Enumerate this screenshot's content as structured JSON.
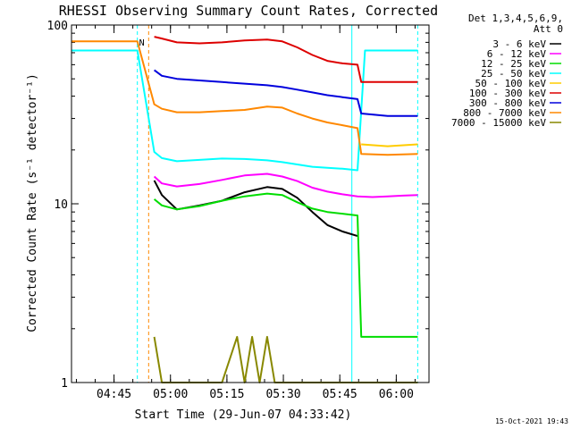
{
  "chart_data": {
    "type": "line",
    "title": "RHESSI Observing Summary Count Rates, Corrected",
    "xlabel": "Start Time (29-Jun-07 04:33:42)",
    "ylabel": "Corrected Count Rate (s⁻¹ detector⁻¹)",
    "y_scale": "log",
    "ylim": [
      1,
      100
    ],
    "xlim_minutes_after_0433_42": [
      0,
      95
    ],
    "x_ticks": [
      {
        "label": "04:45",
        "t": 11.3
      },
      {
        "label": "05:00",
        "t": 26.3
      },
      {
        "label": "05:15",
        "t": 41.3
      },
      {
        "label": "05:30",
        "t": 56.3
      },
      {
        "label": "05:45",
        "t": 71.3
      },
      {
        "label": "06:00",
        "t": 86.3
      }
    ],
    "y_ticks": [
      {
        "label": "100",
        "v": 100
      },
      {
        "label": "10",
        "v": 10
      },
      {
        "label": "1",
        "v": 1
      }
    ],
    "legend_header": [
      "Det 1,3,4,5,6,9,",
      "Att 0"
    ],
    "legend_placement": "right",
    "series": [
      {
        "name": "3 - 6 keV",
        "color": "#000000",
        "points": [
          [
            22,
            13.5
          ],
          [
            24,
            11.2
          ],
          [
            28,
            9.3
          ],
          [
            34,
            9.8
          ],
          [
            40,
            10.4
          ],
          [
            46,
            11.6
          ],
          [
            52,
            12.4
          ],
          [
            56,
            12.1
          ],
          [
            60,
            10.8
          ],
          [
            64,
            9.0
          ],
          [
            68,
            7.6
          ],
          [
            72,
            7.0
          ],
          [
            76,
            6.6
          ]
        ]
      },
      {
        "name": "6 - 12 keV",
        "color": "#ff00ff",
        "points": [
          [
            22,
            14.2
          ],
          [
            24,
            13.0
          ],
          [
            28,
            12.5
          ],
          [
            34,
            12.9
          ],
          [
            40,
            13.6
          ],
          [
            46,
            14.4
          ],
          [
            52,
            14.7
          ],
          [
            56,
            14.2
          ],
          [
            60,
            13.4
          ],
          [
            64,
            12.3
          ],
          [
            68,
            11.7
          ],
          [
            72,
            11.3
          ],
          [
            76,
            11.0
          ],
          [
            80,
            10.9
          ],
          [
            84,
            11.0
          ],
          [
            88,
            11.1
          ],
          [
            92,
            11.2
          ]
        ]
      },
      {
        "name": "12 - 25 keV",
        "color": "#00dd00",
        "points": [
          [
            22,
            10.6
          ],
          [
            24,
            9.8
          ],
          [
            28,
            9.3
          ],
          [
            34,
            9.7
          ],
          [
            40,
            10.4
          ],
          [
            46,
            11.0
          ],
          [
            52,
            11.4
          ],
          [
            56,
            11.2
          ],
          [
            60,
            10.2
          ],
          [
            64,
            9.4
          ],
          [
            68,
            9.0
          ],
          [
            72,
            8.8
          ],
          [
            76,
            8.6
          ],
          [
            77,
            1.8
          ],
          [
            84,
            1.8
          ],
          [
            92,
            1.8
          ]
        ]
      },
      {
        "name": "25 - 50 keV",
        "color": "#00ffff",
        "points": [
          [
            0,
            72
          ],
          [
            17.5,
            72
          ],
          [
            22,
            19.5
          ],
          [
            24,
            18.0
          ],
          [
            28,
            17.3
          ],
          [
            34,
            17.6
          ],
          [
            40,
            17.9
          ],
          [
            46,
            17.8
          ],
          [
            52,
            17.5
          ],
          [
            56,
            17.1
          ],
          [
            60,
            16.6
          ],
          [
            64,
            16.1
          ],
          [
            68,
            15.9
          ],
          [
            72,
            15.7
          ],
          [
            76,
            15.4
          ],
          [
            78,
            72
          ],
          [
            92,
            72
          ]
        ]
      },
      {
        "name": "50 - 100 keV",
        "color": "#ffcc00",
        "points": [
          [
            77,
            21.5
          ],
          [
            84,
            21.0
          ],
          [
            92,
            21.5
          ]
        ]
      },
      {
        "name": "100 - 300 keV",
        "color": "#dd0000",
        "points": [
          [
            22,
            86
          ],
          [
            24,
            84
          ],
          [
            28,
            80
          ],
          [
            34,
            79
          ],
          [
            40,
            80
          ],
          [
            46,
            82
          ],
          [
            52,
            83
          ],
          [
            56,
            81
          ],
          [
            60,
            75
          ],
          [
            64,
            68
          ],
          [
            68,
            63
          ],
          [
            72,
            61
          ],
          [
            76,
            60
          ],
          [
            77,
            48
          ],
          [
            84,
            48
          ],
          [
            92,
            48
          ]
        ]
      },
      {
        "name": "300 - 800 keV",
        "color": "#0000dd",
        "points": [
          [
            22,
            56
          ],
          [
            24,
            52
          ],
          [
            28,
            50
          ],
          [
            34,
            49
          ],
          [
            40,
            48
          ],
          [
            46,
            47
          ],
          [
            52,
            46
          ],
          [
            56,
            45
          ],
          [
            60,
            43.5
          ],
          [
            64,
            42
          ],
          [
            68,
            40.5
          ],
          [
            72,
            39.5
          ],
          [
            76,
            38.5
          ],
          [
            77,
            32
          ],
          [
            84,
            31
          ],
          [
            92,
            31
          ]
        ]
      },
      {
        "name": "800 - 7000 keV",
        "color": "#ff8800",
        "points": [
          [
            0,
            81
          ],
          [
            17.5,
            81
          ],
          [
            22,
            36
          ],
          [
            24,
            34
          ],
          [
            28,
            32.5
          ],
          [
            34,
            32.5
          ],
          [
            40,
            33
          ],
          [
            46,
            33.5
          ],
          [
            52,
            35
          ],
          [
            56,
            34.5
          ],
          [
            60,
            32
          ],
          [
            64,
            30
          ],
          [
            68,
            28.5
          ],
          [
            72,
            27.5
          ],
          [
            76,
            26.5
          ],
          [
            77,
            19
          ],
          [
            84,
            18.8
          ],
          [
            92,
            19
          ]
        ]
      },
      {
        "name": "7000 - 15000 keV",
        "color": "#888800",
        "points": [
          [
            22,
            1.8
          ],
          [
            24,
            1.0
          ],
          [
            40,
            1.0
          ],
          [
            44,
            1.8
          ],
          [
            46,
            1.0
          ],
          [
            48,
            1.8
          ],
          [
            50,
            1.0
          ],
          [
            52,
            1.8
          ],
          [
            54,
            1.0
          ],
          [
            56,
            1.0
          ],
          [
            60,
            1.0
          ],
          [
            76,
            1.0
          ],
          [
            92,
            1.0
          ]
        ]
      }
    ],
    "markers": [
      {
        "t": 17.5,
        "color": "#00ffff",
        "style": "dashed",
        "label": "N"
      },
      {
        "t": 20.5,
        "color": "#ff8800",
        "style": "dashed",
        "label": ""
      },
      {
        "t": 74.5,
        "color": "#00ffff",
        "style": "solid",
        "label": ""
      },
      {
        "t": 92.0,
        "color": "#00ffff",
        "style": "dashed",
        "label": ""
      }
    ],
    "grid": false
  },
  "footer_timestamp": "15-Oct-2021 19:43"
}
